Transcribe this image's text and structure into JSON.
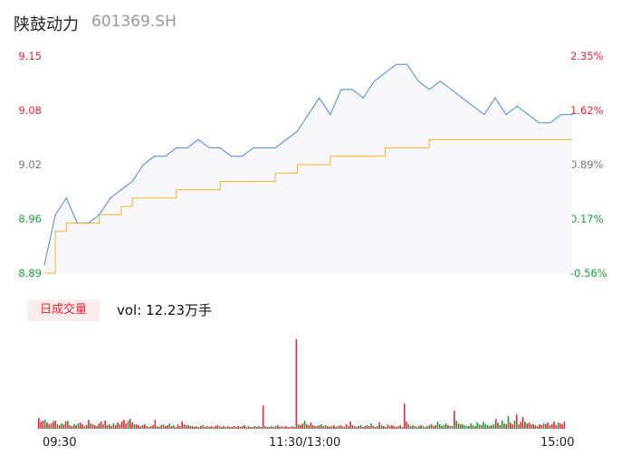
{
  "header": {
    "name": "陕鼓动力",
    "code": "601369.SH"
  },
  "price_axis": {
    "left_ticks": [
      "9.15",
      "9.08",
      "9.02",
      "8.96",
      "8.89"
    ],
    "right_ticks": [
      "2.35%",
      "1.62%",
      "0.89%",
      "0.17%",
      "-0.56%"
    ]
  },
  "volume": {
    "badge": "日成交量",
    "summary": "vol: 12.23万手"
  },
  "time_axis": {
    "labels": [
      "09:30",
      "11:30/13:00",
      "15:00"
    ]
  },
  "colors": {
    "price_line": "#4e86e8",
    "avg_line": "#f0b429",
    "up": "#e8273a",
    "down": "#1a9e3b",
    "area": "#f6f8fd"
  },
  "chart_data": [
    {
      "type": "line",
      "series_note": "intraday price (blue) and average price (orange), sampled every ~5 minutes",
      "x": [
        "09:30",
        "09:35",
        "09:40",
        "09:45",
        "09:50",
        "09:55",
        "10:00",
        "10:05",
        "10:10",
        "10:15",
        "10:20",
        "10:25",
        "10:30",
        "10:35",
        "10:40",
        "10:45",
        "10:50",
        "10:55",
        "11:00",
        "11:05",
        "11:10",
        "11:15",
        "11:20",
        "11:25",
        "11:30",
        "13:05",
        "13:10",
        "13:15",
        "13:20",
        "13:25",
        "13:30",
        "13:35",
        "13:40",
        "13:45",
        "13:50",
        "13:55",
        "14:00",
        "14:05",
        "14:10",
        "14:15",
        "14:20",
        "14:25",
        "14:30",
        "14:35",
        "14:40",
        "14:45",
        "14:50",
        "14:55",
        "15:00"
      ],
      "series": [
        {
          "values": [
            8.9,
            8.96,
            8.98,
            8.95,
            8.95,
            8.96,
            8.98,
            8.99,
            9.0,
            9.02,
            9.03,
            9.03,
            9.04,
            9.04,
            9.05,
            9.04,
            9.04,
            9.03,
            9.03,
            9.04,
            9.04,
            9.04,
            9.05,
            9.06,
            9.08,
            9.1,
            9.08,
            9.11,
            9.11,
            9.1,
            9.12,
            9.13,
            9.14,
            9.14,
            9.12,
            9.11,
            9.12,
            9.11,
            9.1,
            9.09,
            9.08,
            9.1,
            9.08,
            9.09,
            9.08,
            9.07,
            9.07,
            9.08,
            9.08
          ]
        },
        {
          "values": [
            8.89,
            8.94,
            8.95,
            8.95,
            8.95,
            8.96,
            8.96,
            8.97,
            8.98,
            8.98,
            8.98,
            8.98,
            8.99,
            8.99,
            8.99,
            8.99,
            9.0,
            9.0,
            9.0,
            9.0,
            9.0,
            9.01,
            9.01,
            9.02,
            9.02,
            9.02,
            9.03,
            9.03,
            9.03,
            9.03,
            9.03,
            9.04,
            9.04,
            9.04,
            9.04,
            9.05,
            9.05,
            9.05,
            9.05,
            9.05,
            9.05,
            9.05,
            9.05,
            9.05,
            9.05,
            9.05,
            9.05,
            9.05,
            9.05
          ]
        }
      ],
      "ylim": [
        8.89,
        9.15
      ],
      "grid": false
    },
    {
      "type": "bar",
      "series_note": "per-minute trading volume, red = up minute, green = down minute",
      "values": [
        0.12,
        0.08,
        0.09,
        0.1,
        0.07,
        0.05,
        0.06,
        0.08,
        0.09,
        0.05,
        0.04,
        0.06,
        0.05,
        0.08,
        0.09,
        0.04,
        0.03,
        0.05,
        0.04,
        0.06,
        0.07,
        0.05,
        0.03,
        0.04,
        0.1,
        0.06,
        0.05,
        0.04,
        0.03,
        0.06,
        0.08,
        0.05,
        0.09,
        0.04,
        0.05,
        0.03,
        0.06,
        0.04,
        0.07,
        0.05,
        0.08,
        0.1,
        0.06,
        0.09,
        0.11,
        0.07,
        0.05,
        0.05,
        0.04,
        0.03,
        0.04,
        0.05,
        0.03,
        0.02,
        0.03,
        0.04,
        0.1,
        0.03,
        0.02,
        0.04,
        0.05,
        0.03,
        0.04,
        0.06,
        0.03,
        0.04,
        0.02,
        0.05,
        0.03,
        0.08,
        0.05,
        0.04,
        0.04,
        0.03,
        0.03,
        0.02,
        0.03,
        0.02,
        0.03,
        0.04,
        0.02,
        0.03,
        0.02,
        0.03,
        0.02,
        0.03,
        0.04,
        0.03,
        0.02,
        0.03,
        0.02,
        0.03,
        0.02,
        0.02,
        0.03,
        0.02,
        0.03,
        0.02,
        0.03,
        0.04,
        0.02,
        0.03,
        0.02,
        0.02,
        0.03,
        0.02,
        0.03,
        0.02,
        0.26,
        0.03,
        0.02,
        0.02,
        0.03,
        0.02,
        0.03,
        0.04,
        0.02,
        0.03,
        0.02,
        0.03,
        0.02,
        0.02,
        0.03,
        0.02,
        1.0,
        0.05,
        0.04,
        0.06,
        0.09,
        0.05,
        0.04,
        0.07,
        0.04,
        0.03,
        0.03,
        0.04,
        0.05,
        0.03,
        0.04,
        0.03,
        0.02,
        0.03,
        0.04,
        0.02,
        0.03,
        0.04,
        0.03,
        0.02,
        0.05,
        0.03,
        0.08,
        0.04,
        0.03,
        0.02,
        0.03,
        0.04,
        0.02,
        0.03,
        0.04,
        0.03,
        0.06,
        0.03,
        0.02,
        0.03,
        0.07,
        0.04,
        0.03,
        0.02,
        0.05,
        0.03,
        0.04,
        0.03,
        0.02,
        0.03,
        0.04,
        0.02,
        0.28,
        0.08,
        0.05,
        0.03,
        0.04,
        0.03,
        0.02,
        0.03,
        0.04,
        0.03,
        0.02,
        0.03,
        0.04,
        0.05,
        0.03,
        0.04,
        0.08,
        0.05,
        0.03,
        0.04,
        0.06,
        0.04,
        0.03,
        0.03,
        0.2,
        0.09,
        0.06,
        0.05,
        0.05,
        0.04,
        0.03,
        0.03,
        0.06,
        0.04,
        0.03,
        0.07,
        0.05,
        0.04,
        0.08,
        0.05,
        0.04,
        0.03,
        0.04,
        0.05,
        0.11,
        0.07,
        0.04,
        0.09,
        0.06,
        0.05,
        0.14,
        0.07,
        0.05,
        0.09,
        0.16,
        0.05,
        0.08,
        0.13,
        0.08,
        0.06,
        0.07,
        0.05,
        0.05,
        0.04,
        0.03,
        0.05,
        0.04,
        0.06,
        0.05,
        0.07,
        0.04,
        0.05,
        0.08,
        0.04,
        0.07,
        0.06,
        0.05,
        0.08
      ],
      "up": [
        1,
        1,
        1,
        0,
        1,
        1,
        0,
        1,
        1,
        0,
        1,
        0,
        1,
        1,
        0,
        1,
        1,
        0,
        1,
        0,
        1,
        1,
        0,
        1,
        1,
        0,
        1,
        1,
        0,
        1,
        1,
        0,
        1,
        1,
        0,
        1,
        0,
        1,
        1,
        0,
        1,
        1,
        1,
        0,
        1,
        1,
        0,
        1,
        1,
        0,
        1,
        1,
        0,
        1,
        0,
        1,
        1,
        0,
        1,
        1,
        0,
        1,
        1,
        0,
        1,
        0,
        1,
        1,
        0,
        1,
        1,
        0,
        1,
        0,
        1,
        1,
        0,
        1,
        1,
        0,
        1,
        1,
        0,
        1,
        0,
        1,
        1,
        0,
        1,
        1,
        0,
        1,
        0,
        1,
        1,
        0,
        1,
        1,
        0,
        1,
        1,
        0,
        1,
        0,
        1,
        1,
        0,
        1,
        1,
        0,
        1,
        1,
        0,
        1,
        0,
        1,
        1,
        0,
        1,
        1,
        1,
        1,
        0,
        1,
        1,
        0,
        1,
        1,
        0,
        1,
        0,
        1,
        1,
        0,
        1,
        1,
        0,
        1,
        0,
        1,
        1,
        0,
        1,
        1,
        0,
        1,
        1,
        0,
        1,
        0,
        1,
        1,
        0,
        1,
        1,
        0,
        1,
        0,
        1,
        1,
        0,
        1,
        1,
        0,
        1,
        0,
        1,
        1,
        0,
        1,
        1,
        1,
        1,
        0,
        1,
        0,
        1,
        1,
        0,
        1,
        0,
        1,
        0,
        0,
        1,
        0,
        1,
        0,
        0,
        1,
        0,
        1,
        0,
        0,
        1,
        0,
        0,
        1,
        0,
        0,
        1,
        0,
        0,
        1,
        0,
        0,
        0,
        1,
        0,
        0,
        1,
        0,
        0,
        1,
        0,
        0,
        0,
        1,
        0,
        0,
        1,
        0,
        1,
        0,
        0,
        1,
        0,
        1,
        1,
        0,
        1,
        0,
        1,
        1,
        0,
        1,
        1,
        0,
        1,
        1,
        0,
        1,
        1,
        0,
        1,
        1,
        0,
        1,
        1,
        1,
        0,
        1,
        1,
        1
      ]
    }
  ]
}
